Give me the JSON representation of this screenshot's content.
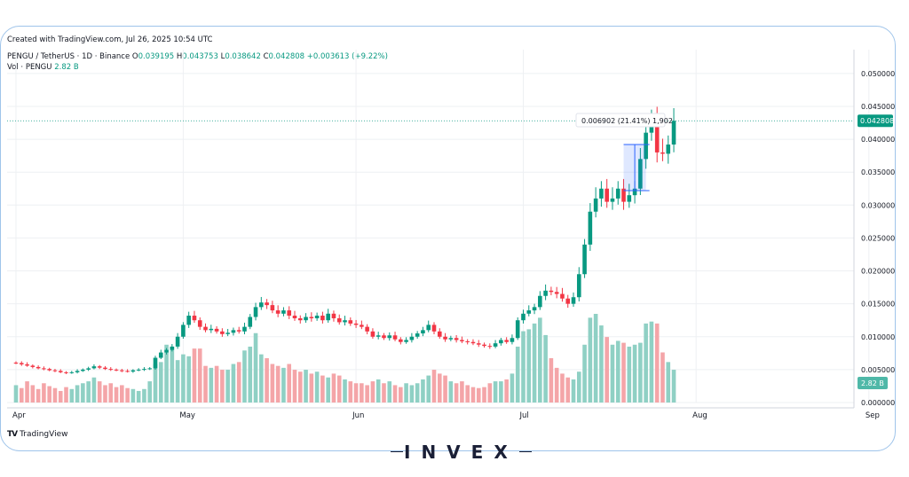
{
  "watermark": "Created with TradingView.com, Jul 26, 2025 10:54 UTC",
  "legend": {
    "symbol": "PENGU / TetherUS · 1D · Binance",
    "open_label": "O",
    "open": "0.039195",
    "high_label": "H",
    "high": "0.043753",
    "low_label": "L",
    "low": "0.038642",
    "close_label": "C",
    "close": "0.042808",
    "change": "+0.003613 (+9.22%)",
    "vol_label": "Vol · PENGU",
    "vol": "2.82 B"
  },
  "brand": {
    "tradingview": "TradingView",
    "logo": "INVEX"
  },
  "colors": {
    "up": "#089981",
    "down": "#f23645",
    "vol_up": "#8fd0c4",
    "vol_down": "#f4a5a8",
    "frame": "#9fc4ea",
    "price_tag": "#089981"
  },
  "chart_data": {
    "type": "candlestick",
    "ylim": [
      0,
      0.052
    ],
    "y_ticks": [
      "0.050000",
      "0.045000",
      "0.040000",
      "0.035000",
      "0.030000",
      "0.025000",
      "0.020000",
      "0.015000",
      "0.010000",
      "0.005000",
      "0.000000"
    ],
    "x_ticks": [
      {
        "label": "Apr",
        "day": 0
      },
      {
        "label": "May",
        "day": 30
      },
      {
        "label": "Jun",
        "day": 61
      },
      {
        "label": "Jul",
        "day": 91
      },
      {
        "label": "Aug",
        "day": 122
      },
      {
        "label": "Sep",
        "day": 153
      }
    ],
    "last_price": "0.042808",
    "volume_tag": "2.82 B",
    "measure_label": "0.006902 (21.41%) 1,902",
    "measure": {
      "from_day": 109,
      "to_day": 113,
      "low": 0.0322,
      "high": 0.0392
    },
    "closes": [
      0.006,
      0.0058,
      0.0056,
      0.0054,
      0.0052,
      0.0051,
      0.0049,
      0.0048,
      0.0046,
      0.0045,
      0.0046,
      0.0048,
      0.005,
      0.0052,
      0.0055,
      0.0053,
      0.0051,
      0.005,
      0.0049,
      0.0048,
      0.0047,
      0.0049,
      0.005,
      0.0051,
      0.0052,
      0.0068,
      0.0076,
      0.008,
      0.0085,
      0.01,
      0.0118,
      0.0132,
      0.0125,
      0.0115,
      0.011,
      0.0112,
      0.0108,
      0.0104,
      0.0106,
      0.011,
      0.0108,
      0.0115,
      0.013,
      0.0145,
      0.0152,
      0.0148,
      0.014,
      0.0135,
      0.014,
      0.0132,
      0.0128,
      0.0125,
      0.013,
      0.0128,
      0.0132,
      0.0125,
      0.0135,
      0.0128,
      0.0122,
      0.0125,
      0.012,
      0.0118,
      0.0115,
      0.0108,
      0.01,
      0.0102,
      0.0098,
      0.0102,
      0.0096,
      0.0092,
      0.0095,
      0.01,
      0.0105,
      0.011,
      0.0118,
      0.0108,
      0.01,
      0.0096,
      0.0098,
      0.0095,
      0.0093,
      0.0092,
      0.009,
      0.0088,
      0.0086,
      0.0085,
      0.009,
      0.0095,
      0.0092,
      0.0098,
      0.0125,
      0.0135,
      0.014,
      0.0145,
      0.0162,
      0.017,
      0.0168,
      0.0165,
      0.0158,
      0.015,
      0.016,
      0.0195,
      0.024,
      0.029,
      0.031,
      0.0325,
      0.0305,
      0.031,
      0.0325,
      0.0305,
      0.0315,
      0.0325,
      0.037,
      0.041,
      0.043,
      0.038,
      0.0378,
      0.0392,
      0.0428
    ],
    "volumes": [
      18,
      15,
      22,
      18,
      14,
      20,
      17,
      15,
      12,
      16,
      14,
      18,
      20,
      22,
      26,
      22,
      18,
      20,
      16,
      18,
      15,
      14,
      12,
      14,
      22,
      40,
      42,
      60,
      58,
      44,
      50,
      48,
      56,
      56,
      38,
      36,
      38,
      34,
      34,
      40,
      42,
      54,
      58,
      72,
      50,
      46,
      40,
      38,
      36,
      40,
      34,
      32,
      34,
      30,
      32,
      28,
      26,
      30,
      28,
      24,
      22,
      20,
      20,
      18,
      22,
      24,
      20,
      22,
      18,
      16,
      20,
      18,
      20,
      24,
      28,
      34,
      30,
      28,
      22,
      20,
      22,
      18,
      16,
      15,
      16,
      20,
      22,
      22,
      24,
      30,
      58,
      74,
      76,
      82,
      88,
      70,
      46,
      36,
      30,
      26,
      24,
      32,
      60,
      88,
      92,
      80,
      68,
      60,
      64,
      62,
      58,
      60,
      62,
      82,
      84,
      82,
      52,
      42,
      34
    ]
  }
}
